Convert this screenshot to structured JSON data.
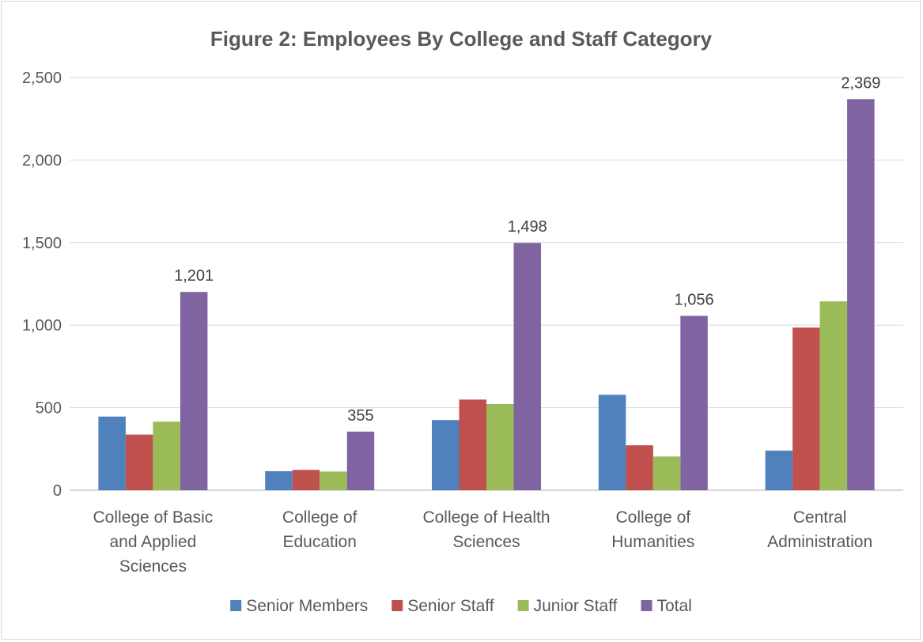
{
  "chart_data": {
    "type": "bar",
    "title": "Figure 2: Employees By College and Staff Category",
    "xlabel": "",
    "ylabel": "",
    "ylim": [
      0,
      2500
    ],
    "yticks": [
      "0",
      "500",
      "1,000",
      "1,500",
      "2,000",
      "2,500"
    ],
    "grid": true,
    "legend_position": "bottom",
    "categories": [
      [
        "College of Basic",
        "and Applied",
        "Sciences"
      ],
      [
        "College of",
        "Education"
      ],
      [
        "College of Health",
        "Sciences"
      ],
      [
        "College of",
        "Humanities"
      ],
      [
        "Central",
        "Administration"
      ]
    ],
    "series": [
      {
        "name": "Senior Members",
        "color": "#4f81bd",
        "values": [
          446,
          115,
          425,
          578,
          240
        ]
      },
      {
        "name": "Senior Staff",
        "color": "#c0504d",
        "values": [
          337,
          123,
          549,
          272,
          985
        ]
      },
      {
        "name": "Junior Staff",
        "color": "#9bbb59",
        "values": [
          415,
          113,
          522,
          204,
          1144
        ]
      },
      {
        "name": "Total",
        "color": "#8064a2",
        "values": [
          1201,
          355,
          1498,
          1056,
          2369
        ]
      }
    ],
    "data_labels": [
      "1,201",
      "355",
      "1,498",
      "1,056",
      "2,369"
    ]
  }
}
